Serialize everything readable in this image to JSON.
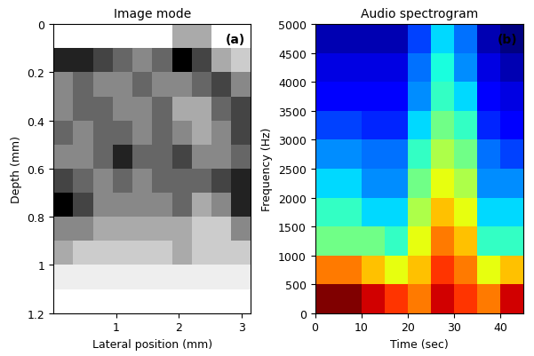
{
  "chart_data": [
    {
      "type": "heatmap",
      "title": "Image mode",
      "x_label": "Lateral position (mm)",
      "y_label": "Depth (mm)",
      "annotations": [
        "(a)"
      ],
      "xlim": [
        0,
        3.15
      ],
      "xticks": [
        1,
        2,
        3
      ],
      "ylim": [
        1.2,
        0
      ],
      "yticks": [
        0,
        0.2,
        0.4,
        0.6,
        0.8,
        1,
        1.2
      ],
      "cells": [
        [
          0.05,
          0.05,
          0.05,
          0.05,
          0.05,
          0.05,
          0.3,
          0.3,
          0.05,
          0.05
        ],
        [
          0.7,
          0.7,
          0.6,
          0.5,
          0.4,
          0.5,
          0.8,
          0.6,
          0.3,
          0.2
        ],
        [
          0.4,
          0.5,
          0.4,
          0.4,
          0.5,
          0.4,
          0.4,
          0.5,
          0.6,
          0.4
        ],
        [
          0.4,
          0.5,
          0.5,
          0.4,
          0.4,
          0.5,
          0.3,
          0.3,
          0.5,
          0.6
        ],
        [
          0.5,
          0.4,
          0.5,
          0.5,
          0.4,
          0.5,
          0.4,
          0.3,
          0.4,
          0.6
        ],
        [
          0.4,
          0.4,
          0.5,
          0.7,
          0.5,
          0.5,
          0.6,
          0.4,
          0.4,
          0.5
        ],
        [
          0.6,
          0.5,
          0.4,
          0.5,
          0.4,
          0.5,
          0.5,
          0.5,
          0.6,
          0.7
        ],
        [
          0.8,
          0.6,
          0.4,
          0.4,
          0.4,
          0.4,
          0.5,
          0.3,
          0.4,
          0.7
        ],
        [
          0.4,
          0.4,
          0.3,
          0.3,
          0.3,
          0.3,
          0.3,
          0.2,
          0.2,
          0.4
        ],
        [
          0.3,
          0.2,
          0.2,
          0.2,
          0.2,
          0.2,
          0.3,
          0.2,
          0.2,
          0.2
        ],
        [
          0.1,
          0.1,
          0.1,
          0.1,
          0.1,
          0.1,
          0.1,
          0.1,
          0.1,
          0.1
        ],
        [
          0.05,
          0.05,
          0.05,
          0.05,
          0.05,
          0.05,
          0.05,
          0.05,
          0.05,
          0.05
        ]
      ]
    },
    {
      "type": "heatmap",
      "title": "Audio spectrogram",
      "x_label": "Time (sec)",
      "y_label": "Frequency (Hz)",
      "annotations": [
        "(b)"
      ],
      "xlim": [
        0,
        45
      ],
      "xticks": [
        0,
        10,
        20,
        30,
        40
      ],
      "ylim": [
        0,
        5000
      ],
      "yticks": [
        0,
        500,
        1000,
        1500,
        2000,
        2500,
        3000,
        3500,
        4000,
        4500,
        5000
      ],
      "cells": [
        [
          0.9,
          0.9,
          0.85,
          0.8,
          0.75,
          0.85,
          0.8,
          0.75,
          0.85
        ],
        [
          0.75,
          0.75,
          0.7,
          0.65,
          0.7,
          0.8,
          0.75,
          0.65,
          0.7
        ],
        [
          0.55,
          0.55,
          0.55,
          0.5,
          0.65,
          0.75,
          0.7,
          0.5,
          0.5
        ],
        [
          0.5,
          0.5,
          0.45,
          0.45,
          0.6,
          0.7,
          0.65,
          0.45,
          0.45
        ],
        [
          0.45,
          0.45,
          0.4,
          0.4,
          0.55,
          0.65,
          0.6,
          0.4,
          0.4
        ],
        [
          0.4,
          0.4,
          0.38,
          0.38,
          0.5,
          0.6,
          0.55,
          0.38,
          0.35
        ],
        [
          0.35,
          0.35,
          0.33,
          0.33,
          0.45,
          0.55,
          0.5,
          0.33,
          0.3
        ],
        [
          0.3,
          0.3,
          0.3,
          0.3,
          0.4,
          0.5,
          0.45,
          0.3,
          0.28
        ],
        [
          0.28,
          0.28,
          0.28,
          0.28,
          0.38,
          0.48,
          0.4,
          0.28,
          0.25
        ],
        [
          0.25,
          0.25,
          0.25,
          0.25,
          0.35,
          0.45,
          0.38,
          0.25,
          0.22
        ]
      ]
    }
  ]
}
